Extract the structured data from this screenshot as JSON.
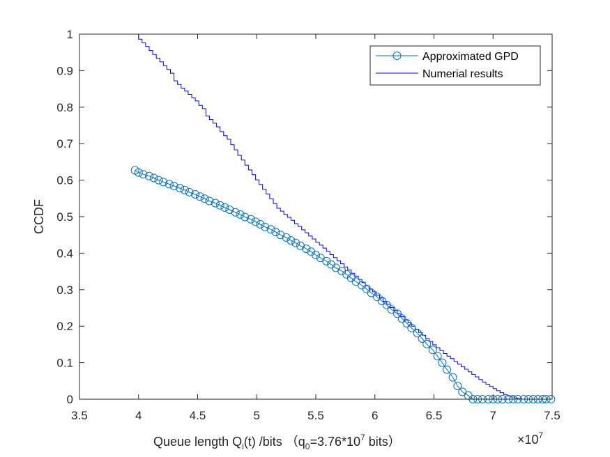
{
  "chart_data": {
    "type": "line",
    "xlabel": {
      "prefix": "Queue length Q",
      "sub": "i",
      "mid": "(t)  /bits  （q",
      "sub2": "0",
      "eq": "=3.76*10",
      "sup": "7",
      "suffix": " bits）"
    },
    "ylabel": "CCDF",
    "x_exponent_label": {
      "base": "×10",
      "exp": "7"
    },
    "xlim": [
      3.5,
      7.5
    ],
    "ylim": [
      0,
      1
    ],
    "xticks": [
      "3.5",
      "4",
      "4.5",
      "5",
      "5.5",
      "6",
      "6.5",
      "7",
      "7.5"
    ],
    "yticks": [
      "0",
      "0.1",
      "0.2",
      "0.3",
      "0.4",
      "0.5",
      "0.6",
      "0.7",
      "0.8",
      "0.9",
      "1"
    ],
    "legend_position": "top-right",
    "colors": {
      "gpd": "#0072BD",
      "numerical": "#0000FF",
      "axis": "#262626"
    },
    "series": [
      {
        "name": "Approximated GPD",
        "marker": "circle",
        "x": [
          3.97,
          4.0,
          4.04,
          4.09,
          4.13,
          4.17,
          4.21,
          4.26,
          4.3,
          4.35,
          4.39,
          4.43,
          4.48,
          4.52,
          4.56,
          4.6,
          4.65,
          4.69,
          4.73,
          4.77,
          4.82,
          4.86,
          4.9,
          4.95,
          4.99,
          5.03,
          5.07,
          5.12,
          5.16,
          5.2,
          5.25,
          5.29,
          5.33,
          5.37,
          5.42,
          5.46,
          5.5,
          5.54,
          5.59,
          5.63,
          5.67,
          5.72,
          5.76,
          5.8,
          5.84,
          5.89,
          5.93,
          5.97,
          6.02,
          6.06,
          6.1,
          6.14,
          6.19,
          6.23,
          6.27,
          6.31,
          6.36,
          6.4,
          6.44,
          6.49,
          6.53,
          6.57,
          6.61,
          6.66,
          6.7,
          6.74,
          6.79,
          6.83,
          6.87,
          6.91,
          6.96,
          7.0,
          7.04,
          7.08,
          7.13,
          7.17,
          7.21,
          7.26,
          7.3,
          7.34,
          7.38,
          7.42,
          7.45,
          7.49
        ],
        "y": [
          0.627,
          0.621,
          0.616,
          0.611,
          0.606,
          0.6,
          0.595,
          0.589,
          0.584,
          0.578,
          0.573,
          0.567,
          0.561,
          0.555,
          0.549,
          0.543,
          0.537,
          0.531,
          0.525,
          0.519,
          0.512,
          0.506,
          0.499,
          0.493,
          0.486,
          0.479,
          0.472,
          0.465,
          0.458,
          0.45,
          0.443,
          0.435,
          0.428,
          0.42,
          0.412,
          0.404,
          0.395,
          0.387,
          0.378,
          0.369,
          0.36,
          0.351,
          0.342,
          0.332,
          0.322,
          0.312,
          0.302,
          0.291,
          0.28,
          0.269,
          0.258,
          0.246,
          0.234,
          0.221,
          0.208,
          0.195,
          0.181,
          0.166,
          0.151,
          0.135,
          0.118,
          0.1,
          0.081,
          0.06,
          0.036,
          0.02,
          0.01,
          0.0,
          0.0,
          0.0,
          0.0,
          0.0,
          0.0,
          0.0,
          0.0,
          0.0,
          0.0,
          0.0,
          0.0,
          0.0,
          0.0,
          0.0,
          0.0,
          0.0
        ]
      },
      {
        "name": "Numerial results",
        "marker": "none",
        "style": "step",
        "x": [
          3.97,
          4.0,
          4.03,
          4.06,
          4.09,
          4.12,
          4.15,
          4.18,
          4.21,
          4.24,
          4.27,
          4.3,
          4.33,
          4.36,
          4.39,
          4.42,
          4.45,
          4.48,
          4.51,
          4.54,
          4.57,
          4.6,
          4.63,
          4.66,
          4.69,
          4.72,
          4.75,
          4.78,
          4.81,
          4.84,
          4.87,
          4.9,
          4.93,
          4.96,
          4.99,
          5.02,
          5.05,
          5.08,
          5.11,
          5.14,
          5.17,
          5.2,
          5.23,
          5.26,
          5.29,
          5.32,
          5.35,
          5.38,
          5.41,
          5.44,
          5.47,
          5.5,
          5.53,
          5.56,
          5.59,
          5.62,
          5.65,
          5.68,
          5.71,
          5.74,
          5.77,
          5.8,
          5.83,
          5.86,
          5.89,
          5.92,
          5.95,
          5.98,
          6.01,
          6.04,
          6.07,
          6.1,
          6.13,
          6.16,
          6.19,
          6.22,
          6.25,
          6.28,
          6.31,
          6.34,
          6.37,
          6.4,
          6.43,
          6.46,
          6.49,
          6.52,
          6.55,
          6.58,
          6.61,
          6.64,
          6.67,
          6.7,
          6.73,
          6.76,
          6.79,
          6.82,
          6.85,
          6.88,
          6.91,
          6.94,
          6.97,
          7.0,
          7.03,
          7.06,
          7.09,
          7.12,
          7.15,
          7.18,
          7.21,
          7.24,
          7.27,
          7.3,
          7.33,
          7.36,
          7.39,
          7.42,
          7.45,
          7.48
        ],
        "y": [
          1.0,
          0.986,
          0.976,
          0.966,
          0.955,
          0.944,
          0.934,
          0.924,
          0.914,
          0.903,
          0.893,
          0.872,
          0.862,
          0.852,
          0.844,
          0.835,
          0.826,
          0.817,
          0.805,
          0.796,
          0.776,
          0.766,
          0.756,
          0.746,
          0.733,
          0.722,
          0.712,
          0.697,
          0.683,
          0.668,
          0.655,
          0.641,
          0.628,
          0.615,
          0.601,
          0.588,
          0.575,
          0.562,
          0.549,
          0.536,
          0.523,
          0.515,
          0.506,
          0.498,
          0.49,
          0.481,
          0.473,
          0.464,
          0.456,
          0.447,
          0.439,
          0.43,
          0.422,
          0.414,
          0.405,
          0.396,
          0.388,
          0.379,
          0.371,
          0.362,
          0.354,
          0.345,
          0.337,
          0.328,
          0.319,
          0.311,
          0.302,
          0.294,
          0.285,
          0.277,
          0.268,
          0.26,
          0.251,
          0.243,
          0.234,
          0.226,
          0.217,
          0.209,
          0.2,
          0.192,
          0.183,
          0.175,
          0.166,
          0.158,
          0.149,
          0.141,
          0.133,
          0.125,
          0.118,
          0.111,
          0.103,
          0.096,
          0.089,
          0.082,
          0.075,
          0.068,
          0.061,
          0.054,
          0.047,
          0.041,
          0.035,
          0.029,
          0.023,
          0.018,
          0.013,
          0.009,
          0.006,
          0.003,
          0.001,
          0.0,
          0.0,
          0.0,
          0.0,
          0.0,
          0.0,
          0.0,
          0.0,
          0.0
        ]
      }
    ]
  }
}
